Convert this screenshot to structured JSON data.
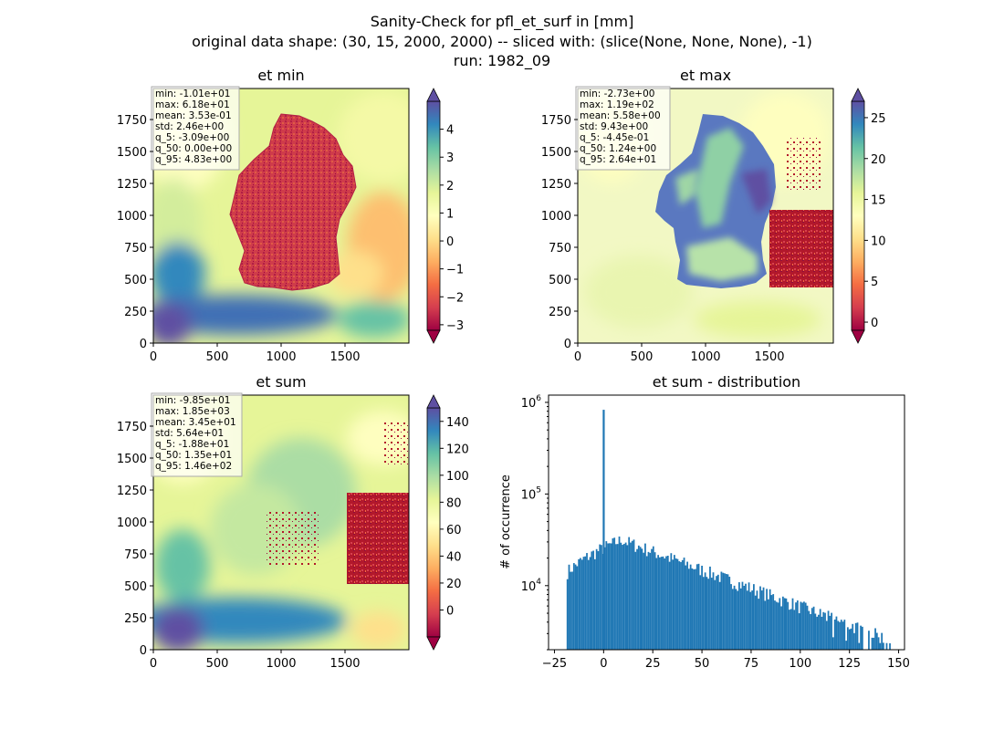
{
  "figure": {
    "suptitle": [
      "Sanity-Check for pfl_et_surf in [mm]",
      "original data shape: (30, 15, 2000, 2000) -- sliced with: (slice(None, None, None), -1)",
      "run: 1982_09"
    ]
  },
  "chart_data": [
    {
      "type": "heatmap",
      "title": "et min",
      "xlim": [
        0,
        2000
      ],
      "ylim": [
        0,
        2000
      ],
      "xticks": [
        "0",
        "500",
        "1000",
        "1500"
      ],
      "yticks": [
        "0",
        "250",
        "500",
        "750",
        "1000",
        "1250",
        "1500",
        "1750"
      ],
      "colormap": "Spectral",
      "colorbar": {
        "range": [
          -3.2,
          5
        ],
        "ticks": [
          "−3",
          "−2",
          "−1",
          "0",
          "1",
          "2",
          "3",
          "4"
        ],
        "extend": "both"
      },
      "stats": [
        "min: -1.01e+01",
        "max: 6.18e+01",
        "mean: 3.53e-01",
        "std: 2.46e+00",
        "q_5: -3.09e+00",
        "q_50: 0.00e+00",
        "q_95: 4.83e+00"
      ]
    },
    {
      "type": "heatmap",
      "title": "et max",
      "xlim": [
        0,
        2000
      ],
      "ylim": [
        0,
        2000
      ],
      "xticks": [
        "0",
        "500",
        "1000",
        "1500"
      ],
      "yticks": [
        "0",
        "250",
        "500",
        "750",
        "1000",
        "1250",
        "1500",
        "1750"
      ],
      "colormap": "Spectral",
      "colorbar": {
        "range": [
          -1,
          27
        ],
        "ticks": [
          "0",
          "5",
          "10",
          "15",
          "20",
          "25"
        ],
        "extend": "both"
      },
      "stats": [
        "min: -2.73e+00",
        "max: 1.19e+02",
        "mean: 5.58e+00",
        "std: 9.43e+00",
        "q_5: -4.45e-01",
        "q_50: 1.24e+00",
        "q_95: 2.64e+01"
      ]
    },
    {
      "type": "heatmap",
      "title": "et sum",
      "xlim": [
        0,
        2000
      ],
      "ylim": [
        0,
        2000
      ],
      "xticks": [
        "0",
        "500",
        "1000",
        "1500"
      ],
      "yticks": [
        "0",
        "250",
        "500",
        "750",
        "1000",
        "1250",
        "1500",
        "1750"
      ],
      "colormap": "Spectral",
      "colorbar": {
        "range": [
          -20,
          150
        ],
        "ticks": [
          "0",
          "20",
          "40",
          "60",
          "80",
          "100",
          "120",
          "140"
        ],
        "extend": "both"
      },
      "stats": [
        "min: -9.85e+01",
        "max: 1.85e+03",
        "mean: 3.45e+01",
        "std: 5.64e+01",
        "q_5: -1.88e+01",
        "q_50: 1.35e+01",
        "q_95: 1.46e+02"
      ]
    },
    {
      "type": "bar",
      "title": "et sum - distribution",
      "ylabel": "# of occurrence",
      "xlabel": "",
      "yscale": "log",
      "xlim": [
        -28,
        153
      ],
      "ylim": [
        2000,
        1200000
      ],
      "xticks": [
        "−25",
        "0",
        "25",
        "50",
        "75",
        "100",
        "125",
        "150"
      ],
      "yticks": [
        "10^4",
        "10^5",
        "10^6"
      ],
      "bin_range": [
        -18.8,
        146
      ],
      "spike": {
        "x": 0,
        "count": 830000
      },
      "color": "#1f77b4"
    }
  ]
}
